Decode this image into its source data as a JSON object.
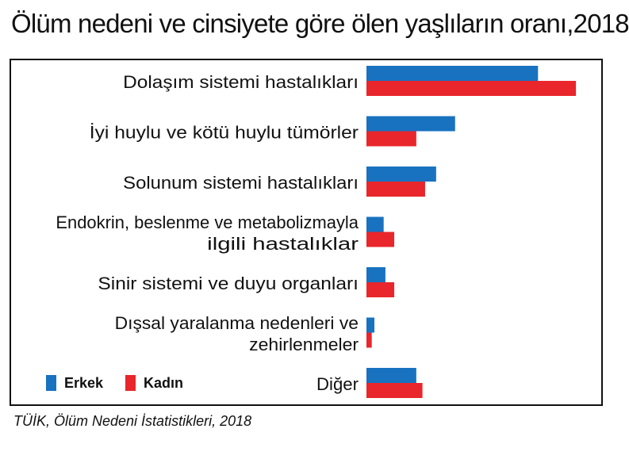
{
  "header": {
    "title": "Ölüm nedeni ve cinsiyete göre ölen yaşlıların oranı,2018"
  },
  "footer": {
    "source": "TÜİK, Ölüm Nedeni İstatistikleri, 2018"
  },
  "colors": {
    "erkek": "#1872c0",
    "kadin": "#e8262b"
  },
  "chart_data": {
    "type": "bar",
    "orientation": "horizontal",
    "categories": [
      [
        "Dolaşım sistemi hastalıkları"
      ],
      [
        "İyi huylu ve kötü huylu tümörler"
      ],
      [
        "Solunum sistemi hastalıkları"
      ],
      [
        "Endokrin, beslenme ve metabolizmayla",
        "ilgili hastalıklar"
      ],
      [
        "Sinir sistemi ve duyu organları"
      ],
      [
        "Dışsal yaralanma nedenleri ve",
        "zehirlenmeler"
      ],
      [
        "Diğer"
      ]
    ],
    "series": [
      {
        "name": "Erkek",
        "values": [
          38.9,
          20.1,
          15.8,
          3.9,
          4.3,
          1.8,
          11.3
        ]
      },
      {
        "name": "Kadın",
        "values": [
          47.5,
          11.3,
          13.3,
          6.3,
          6.3,
          1.2,
          12.7
        ]
      }
    ],
    "xlim": [
      0,
      50
    ],
    "grid": false,
    "legend_position": "bottom-left"
  }
}
